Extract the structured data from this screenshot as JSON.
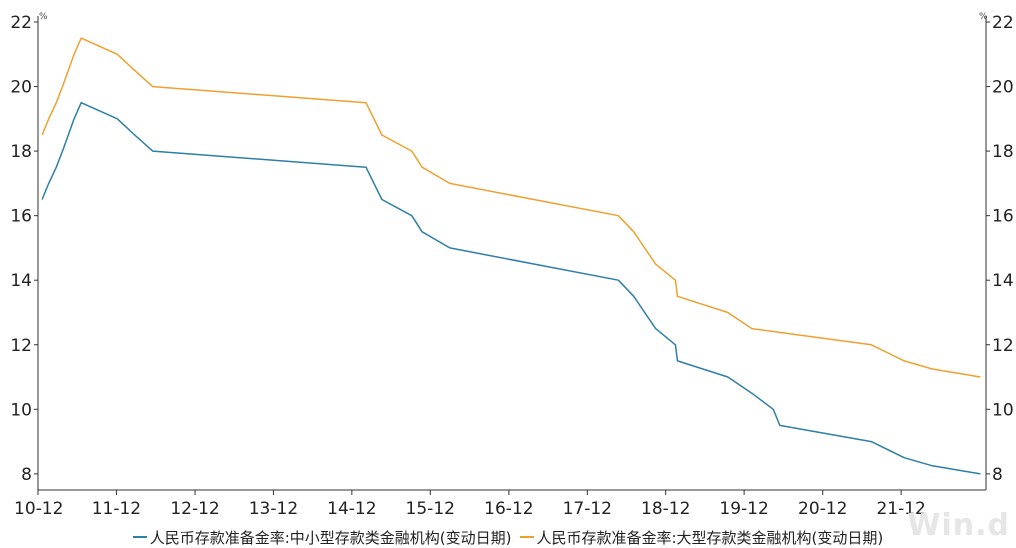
{
  "chart_data": {
    "type": "line",
    "unit_left": "%",
    "unit_right": "%",
    "x_tick_labels": [
      "10-12",
      "11-12",
      "12-12",
      "13-12",
      "14-12",
      "15-12",
      "16-12",
      "17-12",
      "18-12",
      "19-12",
      "20-12",
      "21-12"
    ],
    "x_range": [
      "2010-12-01",
      "2022-12-31"
    ],
    "ylim": [
      7.5,
      22
    ],
    "y_ticks": [
      8,
      10,
      12,
      14,
      16,
      18,
      20,
      22
    ],
    "grid": false,
    "legend_position": "bottom",
    "series": [
      {
        "name": "人民币存款准备金率:中小型存款类金融机构(变动日期)",
        "color": "#2e7fa8",
        "points": [
          [
            "2010-12-20",
            16.5
          ],
          [
            "2011-01-20",
            17.0
          ],
          [
            "2011-02-24",
            17.5
          ],
          [
            "2011-03-25",
            18.0
          ],
          [
            "2011-04-21",
            18.5
          ],
          [
            "2011-05-18",
            19.0
          ],
          [
            "2011-06-20",
            19.5
          ],
          [
            "2011-12-05",
            19.0
          ],
          [
            "2012-02-24",
            18.5
          ],
          [
            "2012-05-18",
            18.0
          ],
          [
            "2015-02-05",
            17.5
          ],
          [
            "2015-04-20",
            16.5
          ],
          [
            "2015-09-06",
            16.0
          ],
          [
            "2015-10-24",
            15.5
          ],
          [
            "2016-03-01",
            15.0
          ],
          [
            "2018-04-25",
            14.0
          ],
          [
            "2018-07-05",
            13.5
          ],
          [
            "2018-10-15",
            12.5
          ],
          [
            "2019-01-15",
            12.0
          ],
          [
            "2019-01-25",
            11.5
          ],
          [
            "2019-09-16",
            11.0
          ],
          [
            "2020-01-06",
            10.5
          ],
          [
            "2020-04-15",
            10.0
          ],
          [
            "2020-05-15",
            9.5
          ],
          [
            "2021-07-15",
            9.0
          ],
          [
            "2021-12-15",
            8.5
          ],
          [
            "2022-04-25",
            8.25
          ],
          [
            "2022-12-05",
            8.0
          ]
        ]
      },
      {
        "name": "人民币存款准备金率:大型存款类金融机构(变动日期)",
        "color": "#f0a030",
        "points": [
          [
            "2010-12-20",
            18.5
          ],
          [
            "2011-01-20",
            19.0
          ],
          [
            "2011-02-24",
            19.5
          ],
          [
            "2011-03-25",
            20.0
          ],
          [
            "2011-04-21",
            20.5
          ],
          [
            "2011-05-18",
            21.0
          ],
          [
            "2011-06-20",
            21.5
          ],
          [
            "2011-12-05",
            21.0
          ],
          [
            "2012-02-24",
            20.5
          ],
          [
            "2012-05-18",
            20.0
          ],
          [
            "2015-02-05",
            19.5
          ],
          [
            "2015-04-20",
            18.5
          ],
          [
            "2015-09-06",
            18.0
          ],
          [
            "2015-10-24",
            17.5
          ],
          [
            "2016-03-01",
            17.0
          ],
          [
            "2018-04-25",
            16.0
          ],
          [
            "2018-07-05",
            15.5
          ],
          [
            "2018-10-15",
            14.5
          ],
          [
            "2019-01-15",
            14.0
          ],
          [
            "2019-01-25",
            13.5
          ],
          [
            "2019-09-16",
            13.0
          ],
          [
            "2020-01-06",
            12.5
          ],
          [
            "2021-07-15",
            12.0
          ],
          [
            "2021-12-15",
            11.5
          ],
          [
            "2022-04-25",
            11.25
          ],
          [
            "2022-12-05",
            11.0
          ]
        ]
      }
    ]
  },
  "watermark": "Win.d"
}
